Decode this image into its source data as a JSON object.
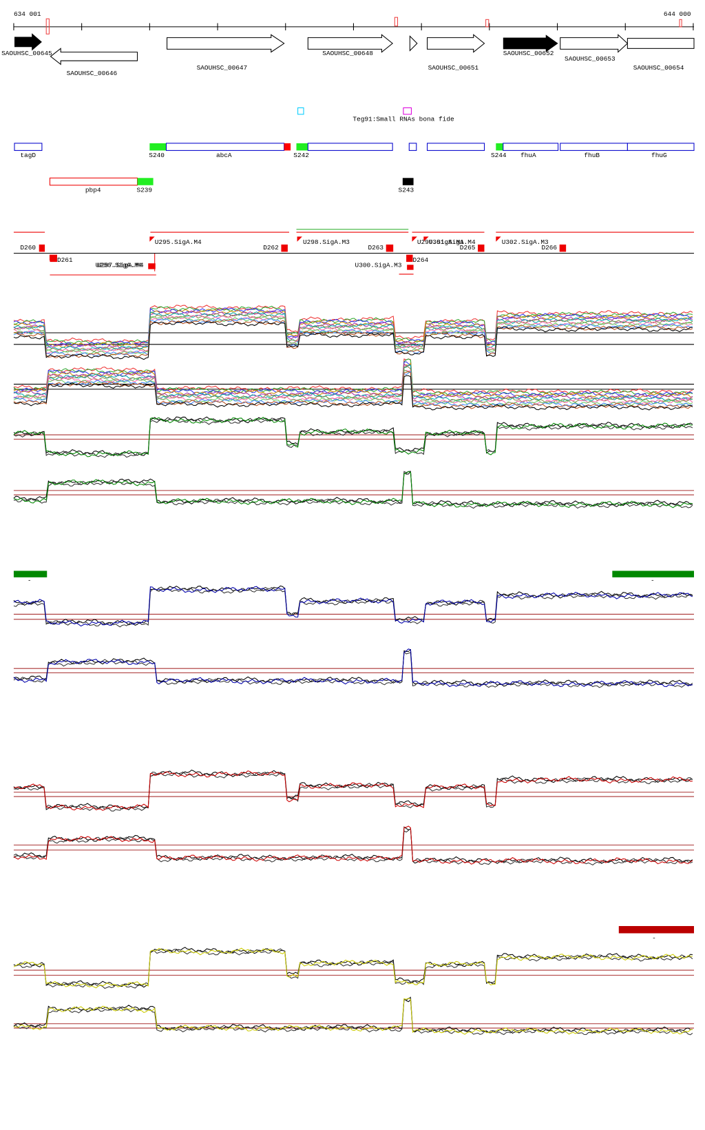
{
  "ruler": {
    "start": "634 001",
    "end": "644 000"
  },
  "genes": [
    "SAOUHSC_00645",
    "SAOUHSC_00646",
    "SAOUHSC_00647",
    "SAOUHSC_00648",
    "SAOUHSC_00651",
    "SAOUHSC_00652",
    "SAOUHSC_00653",
    "SAOUHSC_00654"
  ],
  "small_rna": "Teg91:Small RNAs bona fide",
  "features": [
    "tagD",
    "S240",
    "abcA",
    "S242",
    "S244",
    "fhuA",
    "fhuB",
    "fhuG",
    "pbp4",
    "S239",
    "S243"
  ],
  "segments": [
    "D260",
    "D261",
    "U295.SigA.M4",
    "U296.SigA.M4",
    "U297.SigA.M4",
    "D262",
    "U298.SigA.M3",
    "D263",
    "U299.SigA.M1",
    "U301.SigA.M4",
    "D265",
    "U302.SigA.M3",
    "D266",
    "U300.SigA.M3",
    "D264"
  ],
  "marks": [
    "-",
    "-",
    "-"
  ]
}
